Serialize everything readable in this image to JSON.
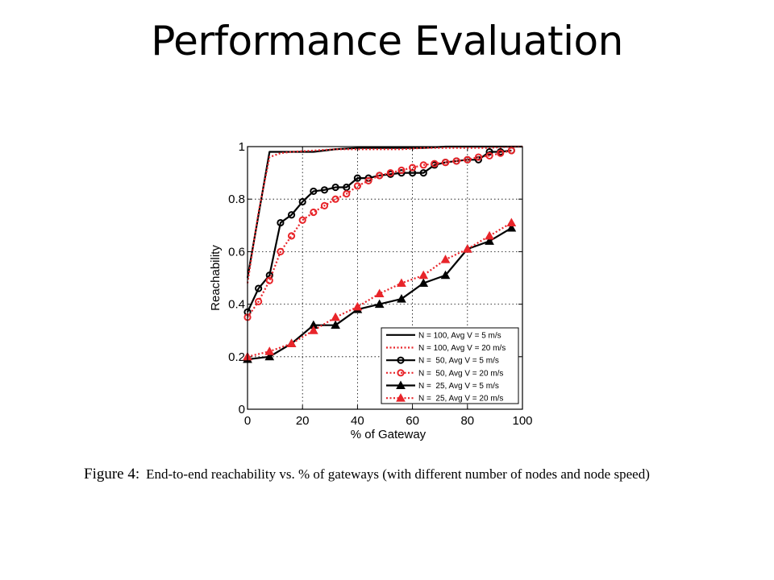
{
  "slide": {
    "title": "Performance Evaluation"
  },
  "caption": {
    "label": "Figure 4:",
    "text": "End-to-end reachability vs. % of gateways (with different number of nodes and node speed)"
  },
  "chart_data": {
    "type": "line",
    "title": "",
    "xlabel": "% of Gateway",
    "ylabel": "Reachability",
    "xlim": [
      0,
      100
    ],
    "ylim": [
      0,
      1
    ],
    "xticks": [
      0,
      20,
      40,
      60,
      80,
      100
    ],
    "yticks": [
      0,
      0.2,
      0.4,
      0.6,
      0.8,
      1
    ],
    "xtick_labels": [
      "0",
      "20",
      "40",
      "60",
      "80",
      "100"
    ],
    "ytick_labels": [
      "0",
      "0.2",
      "0.4",
      "0.6",
      "0.8",
      "1"
    ],
    "grid": true,
    "legend_position": "bottom-right",
    "series": [
      {
        "name": "N = 100, Avg V = 5 m/s",
        "color": "#000000",
        "style": "solid",
        "marker": "none",
        "x": [
          0,
          8,
          16,
          24,
          32,
          40,
          48,
          56,
          64,
          72,
          80,
          88,
          96,
          100
        ],
        "y": [
          0.5,
          0.98,
          0.98,
          0.98,
          0.99,
          0.995,
          0.995,
          0.995,
          0.995,
          1.0,
          1.0,
          1.0,
          1.0,
          1.0
        ]
      },
      {
        "name": "N = 100, Avg V = 20 m/s",
        "color": "#e8252a",
        "style": "dotted",
        "marker": "none",
        "x": [
          0,
          4,
          8,
          12,
          16,
          24,
          32,
          40,
          48,
          56,
          64,
          72,
          80,
          88,
          96,
          100
        ],
        "y": [
          0.48,
          0.75,
          0.96,
          0.975,
          0.98,
          0.985,
          0.99,
          0.99,
          0.99,
          0.99,
          0.995,
          0.995,
          0.995,
          0.995,
          1.0,
          1.0
        ]
      },
      {
        "name": "N =  50, Avg V = 5 m/s",
        "color": "#000000",
        "style": "solid",
        "marker": "circle",
        "x": [
          0,
          4,
          8,
          12,
          16,
          20,
          24,
          28,
          32,
          36,
          40,
          44,
          48,
          52,
          56,
          60,
          64,
          68,
          72,
          76,
          80,
          84,
          88,
          92,
          96
        ],
        "y": [
          0.37,
          0.46,
          0.51,
          0.71,
          0.74,
          0.79,
          0.83,
          0.835,
          0.845,
          0.845,
          0.88,
          0.88,
          0.89,
          0.895,
          0.9,
          0.9,
          0.9,
          0.93,
          0.94,
          0.945,
          0.95,
          0.95,
          0.98,
          0.98,
          0.985
        ]
      },
      {
        "name": "N =  50, Avg V = 20 m/s",
        "color": "#e8252a",
        "style": "dotted",
        "marker": "circle",
        "x": [
          0,
          4,
          8,
          12,
          16,
          20,
          24,
          28,
          32,
          36,
          40,
          44,
          48,
          52,
          56,
          60,
          64,
          68,
          72,
          76,
          80,
          84,
          88,
          92,
          96
        ],
        "y": [
          0.35,
          0.41,
          0.49,
          0.6,
          0.66,
          0.72,
          0.75,
          0.775,
          0.8,
          0.82,
          0.85,
          0.87,
          0.89,
          0.9,
          0.91,
          0.92,
          0.93,
          0.935,
          0.94,
          0.945,
          0.95,
          0.96,
          0.965,
          0.975,
          0.985
        ]
      },
      {
        "name": "N =  25, Avg V = 5 m/s",
        "color": "#000000",
        "style": "solid",
        "marker": "triangle",
        "x": [
          0,
          8,
          16,
          24,
          32,
          40,
          48,
          56,
          64,
          72,
          80,
          88,
          96
        ],
        "y": [
          0.19,
          0.2,
          0.25,
          0.32,
          0.32,
          0.38,
          0.4,
          0.42,
          0.48,
          0.51,
          0.61,
          0.64,
          0.69
        ]
      },
      {
        "name": "N =  25, Avg V = 20 m/s",
        "color": "#e8252a",
        "style": "dotted",
        "marker": "triangle",
        "x": [
          0,
          8,
          16,
          24,
          32,
          40,
          48,
          56,
          64,
          72,
          80,
          88,
          96
        ],
        "y": [
          0.2,
          0.22,
          0.25,
          0.3,
          0.35,
          0.39,
          0.44,
          0.48,
          0.51,
          0.57,
          0.61,
          0.66,
          0.71
        ]
      }
    ]
  }
}
